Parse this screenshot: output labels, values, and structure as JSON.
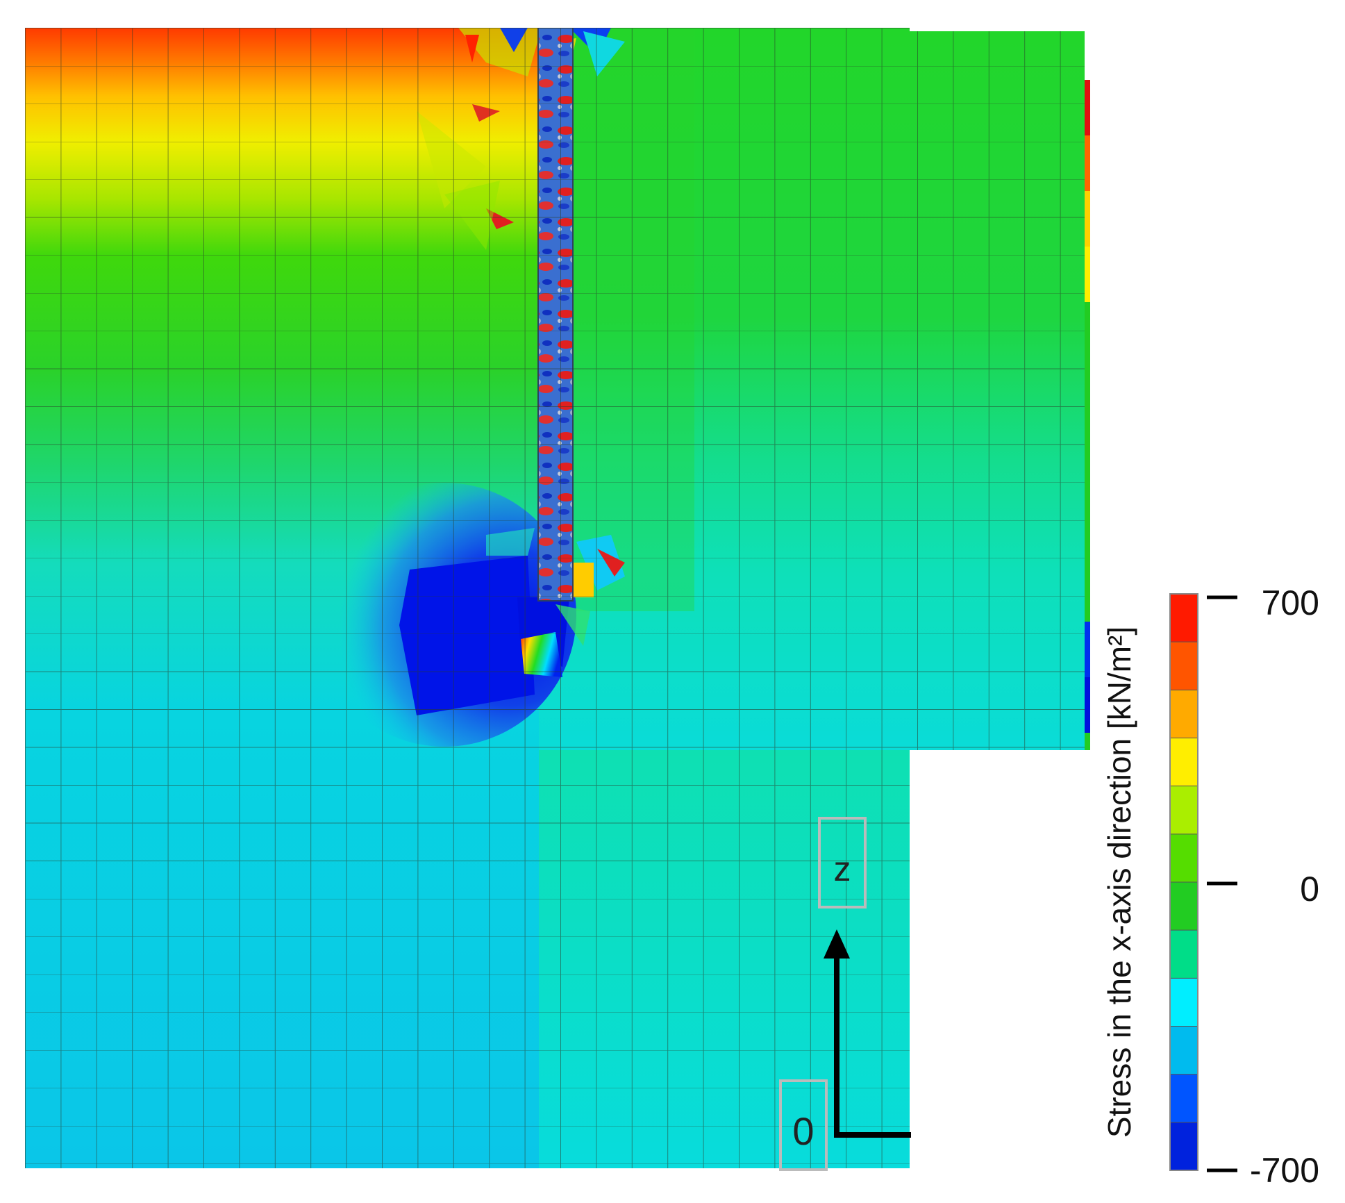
{
  "legend": {
    "title": "Stress in the x-axis direction [kN/m²]",
    "max_label": "700",
    "mid_label": "0",
    "min_label": "-700",
    "range": [
      -700,
      700
    ],
    "colors": [
      "#ff1a00",
      "#ff5500",
      "#ffaa00",
      "#ffee00",
      "#aaee00",
      "#55dd00",
      "#22cc22",
      "#00dd88",
      "#00eeff",
      "#00bbee",
      "#0055ff",
      "#0022dd"
    ]
  },
  "axes": {
    "z_label": "z",
    "origin_label": "0"
  }
}
